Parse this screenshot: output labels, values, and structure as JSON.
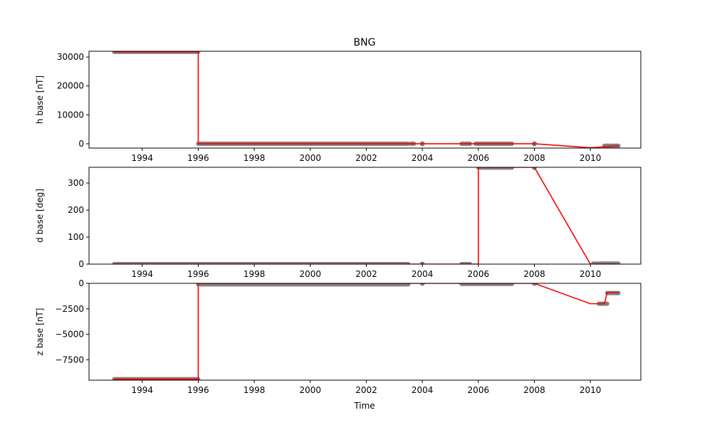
{
  "chart_data": {
    "type": "line",
    "title": "BNG",
    "xlabel": "Time",
    "colors": {
      "line": "#ff0000",
      "points": "#808080",
      "point_edge": "#696969"
    },
    "x_ticks": [
      "1994",
      "1996",
      "1998",
      "2000",
      "2002",
      "2004",
      "2006",
      "2008",
      "2010"
    ],
    "panels": [
      {
        "ylabel": "h base [nT]",
        "xlim": [
          1992.1,
          2011.8
        ],
        "ylim": [
          -1500,
          32000
        ],
        "y_ticks": [
          0,
          10000,
          20000,
          30000
        ],
        "y_tick_labels": [
          "0",
          "10000",
          "20000",
          "30000"
        ],
        "line": [
          [
            1993.0,
            31800
          ],
          [
            1996.0,
            31800
          ],
          [
            1996.0,
            0
          ],
          [
            2008.0,
            0
          ],
          [
            2010.0,
            -1400
          ],
          [
            2011.0,
            -700
          ]
        ],
        "points": [
          {
            "x0": 1993.0,
            "x1": 1996.0,
            "y": 31800
          },
          {
            "x0": 1996.0,
            "x1": 2003.5,
            "y": 0
          },
          {
            "x0": 2003.6,
            "x1": 2003.7,
            "y": 0
          },
          {
            "x0": 2004.0,
            "x1": 2004.0,
            "y": 0
          },
          {
            "x0": 2005.4,
            "x1": 2005.7,
            "y": 0
          },
          {
            "x0": 2005.9,
            "x1": 2007.2,
            "y": 0
          },
          {
            "x0": 2008.0,
            "x1": 2008.0,
            "y": 0
          },
          {
            "x0": 2010.5,
            "x1": 2011.0,
            "y": -700
          }
        ]
      },
      {
        "ylabel": "d base [deg]",
        "xlim": [
          1992.1,
          2011.8
        ],
        "ylim": [
          0,
          358
        ],
        "y_ticks": [
          0,
          100,
          200,
          300
        ],
        "y_tick_labels": [
          "0",
          "100",
          "200",
          "300"
        ],
        "line": [
          [
            1993.0,
            0
          ],
          [
            2006.0,
            0
          ],
          [
            2006.0,
            358
          ],
          [
            2008.0,
            358
          ],
          [
            2010.0,
            0
          ],
          [
            2011.0,
            0
          ]
        ],
        "points": [
          {
            "x0": 1993.0,
            "x1": 2003.5,
            "y": 0
          },
          {
            "x0": 2004.0,
            "x1": 2004.0,
            "y": 0
          },
          {
            "x0": 2005.4,
            "x1": 2005.7,
            "y": 0
          },
          {
            "x0": 2006.0,
            "x1": 2007.2,
            "y": 357
          },
          {
            "x0": 2008.0,
            "x1": 2008.0,
            "y": 357
          },
          {
            "x0": 2010.1,
            "x1": 2011.0,
            "y": 2
          }
        ]
      },
      {
        "ylabel": "z base [nT]",
        "xlim": [
          1992.1,
          2011.8
        ],
        "ylim": [
          -9500,
          0
        ],
        "y_ticks": [
          0,
          -2500,
          -5000,
          -7500
        ],
        "y_tick_labels": [
          "0",
          "−2500",
          "−5000",
          "−7500"
        ],
        "line": [
          [
            1993.0,
            -9400
          ],
          [
            1996.0,
            -9400
          ],
          [
            1996.0,
            0
          ],
          [
            2008.0,
            0
          ],
          [
            2010.0,
            -2000
          ],
          [
            2010.5,
            -2000
          ],
          [
            2010.6,
            -900
          ],
          [
            2011.0,
            -900
          ]
        ],
        "points": [
          {
            "x0": 1993.0,
            "x1": 1996.0,
            "y": -9400
          },
          {
            "x0": 1996.0,
            "x1": 2003.5,
            "y": -100
          },
          {
            "x0": 2004.0,
            "x1": 2004.0,
            "y": 0
          },
          {
            "x0": 2005.4,
            "x1": 2007.2,
            "y": -50
          },
          {
            "x0": 2008.0,
            "x1": 2008.0,
            "y": 0
          },
          {
            "x0": 2010.3,
            "x1": 2010.6,
            "y": -2000
          },
          {
            "x0": 2010.6,
            "x1": 2011.0,
            "y": -950
          }
        ]
      }
    ]
  }
}
